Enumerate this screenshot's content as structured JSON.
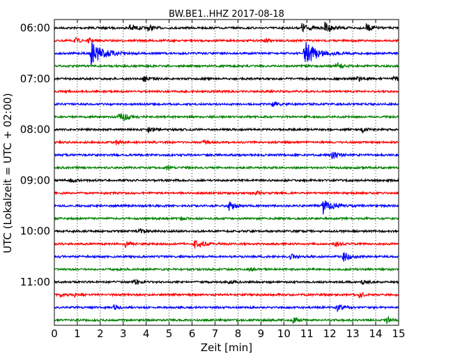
{
  "chart_data": {
    "type": "line",
    "title": "BW.BE1..HHZ 2017-08-18",
    "xlabel": "Zeit  [min]",
    "ylabel": "UTC (Lokalzeit = UTC + 02:00)",
    "xlim": [
      0,
      15
    ],
    "x_ticks": [
      0,
      1,
      2,
      3,
      4,
      5,
      6,
      7,
      8,
      9,
      10,
      11,
      12,
      13,
      14,
      15
    ],
    "y_ticks": [
      "06:00",
      "07:00",
      "08:00",
      "09:00",
      "10:00",
      "11:00"
    ],
    "grid": "vertical dotted",
    "row_interval_minutes": 15,
    "row_colors": [
      "#000000",
      "#ff0000",
      "#0000ff",
      "#008000"
    ],
    "rows": [
      {
        "start": "06:00",
        "events": [
          [
            3.3,
            0.7
          ],
          [
            4.1,
            0.5
          ],
          [
            10.8,
            0.8
          ],
          [
            11.8,
            0.9
          ],
          [
            13.6,
            0.6
          ]
        ]
      },
      {
        "start": "06:15",
        "events": [
          [
            0.9,
            0.4
          ],
          [
            1.5,
            0.3
          ],
          [
            9.2,
            0.3
          ]
        ]
      },
      {
        "start": "06:30",
        "events": [
          [
            1.6,
            2.0
          ],
          [
            10.9,
            2.0
          ]
        ]
      },
      {
        "start": "06:45",
        "events": [
          [
            12.3,
            0.6
          ]
        ]
      },
      {
        "start": "07:00",
        "events": [
          [
            3.9,
            0.5
          ],
          [
            13.2,
            0.5
          ],
          [
            14.8,
            0.5
          ]
        ]
      },
      {
        "start": "07:15",
        "events": []
      },
      {
        "start": "07:30",
        "events": [
          [
            9.5,
            0.5
          ]
        ]
      },
      {
        "start": "07:45",
        "events": [
          [
            2.8,
            1.0
          ]
        ]
      },
      {
        "start": "08:00",
        "events": [
          [
            4.1,
            0.4
          ],
          [
            13.4,
            0.4
          ]
        ]
      },
      {
        "start": "08:15",
        "events": [
          [
            2.7,
            0.3
          ],
          [
            6.5,
            0.3
          ]
        ]
      },
      {
        "start": "08:30",
        "events": [
          [
            12.1,
            0.7
          ]
        ]
      },
      {
        "start": "08:45",
        "events": [
          [
            4.9,
            0.3
          ]
        ]
      },
      {
        "start": "09:00",
        "events": [
          [
            0.7,
            0.3
          ]
        ]
      },
      {
        "start": "09:15",
        "events": [
          [
            8.8,
            0.3
          ]
        ]
      },
      {
        "start": "09:30",
        "events": [
          [
            7.6,
            0.7
          ],
          [
            11.7,
            1.4
          ]
        ]
      },
      {
        "start": "09:45",
        "events": [
          [
            5.5,
            0.3
          ]
        ]
      },
      {
        "start": "10:00",
        "events": [
          [
            3.7,
            0.4
          ]
        ]
      },
      {
        "start": "10:15",
        "events": [
          [
            3.1,
            0.5
          ],
          [
            6.1,
            0.9
          ],
          [
            12.2,
            0.4
          ]
        ]
      },
      {
        "start": "10:30",
        "events": [
          [
            10.3,
            0.4
          ],
          [
            12.6,
            0.7
          ]
        ]
      },
      {
        "start": "10:45",
        "events": [
          [
            8.5,
            0.3
          ]
        ]
      },
      {
        "start": "11:00",
        "events": [
          [
            3.5,
            0.4
          ],
          [
            7.6,
            0.4
          ],
          [
            13.4,
            0.4
          ]
        ]
      },
      {
        "start": "11:15",
        "events": [
          [
            0.2,
            0.4
          ],
          [
            0.9,
            0.4
          ],
          [
            13.3,
            0.4
          ]
        ]
      },
      {
        "start": "11:30",
        "events": [
          [
            2.6,
            0.4
          ],
          [
            12.3,
            0.7
          ]
        ]
      },
      {
        "start": "11:45",
        "events": [
          [
            10.4,
            0.4
          ],
          [
            14.5,
            0.5
          ]
        ]
      }
    ]
  }
}
